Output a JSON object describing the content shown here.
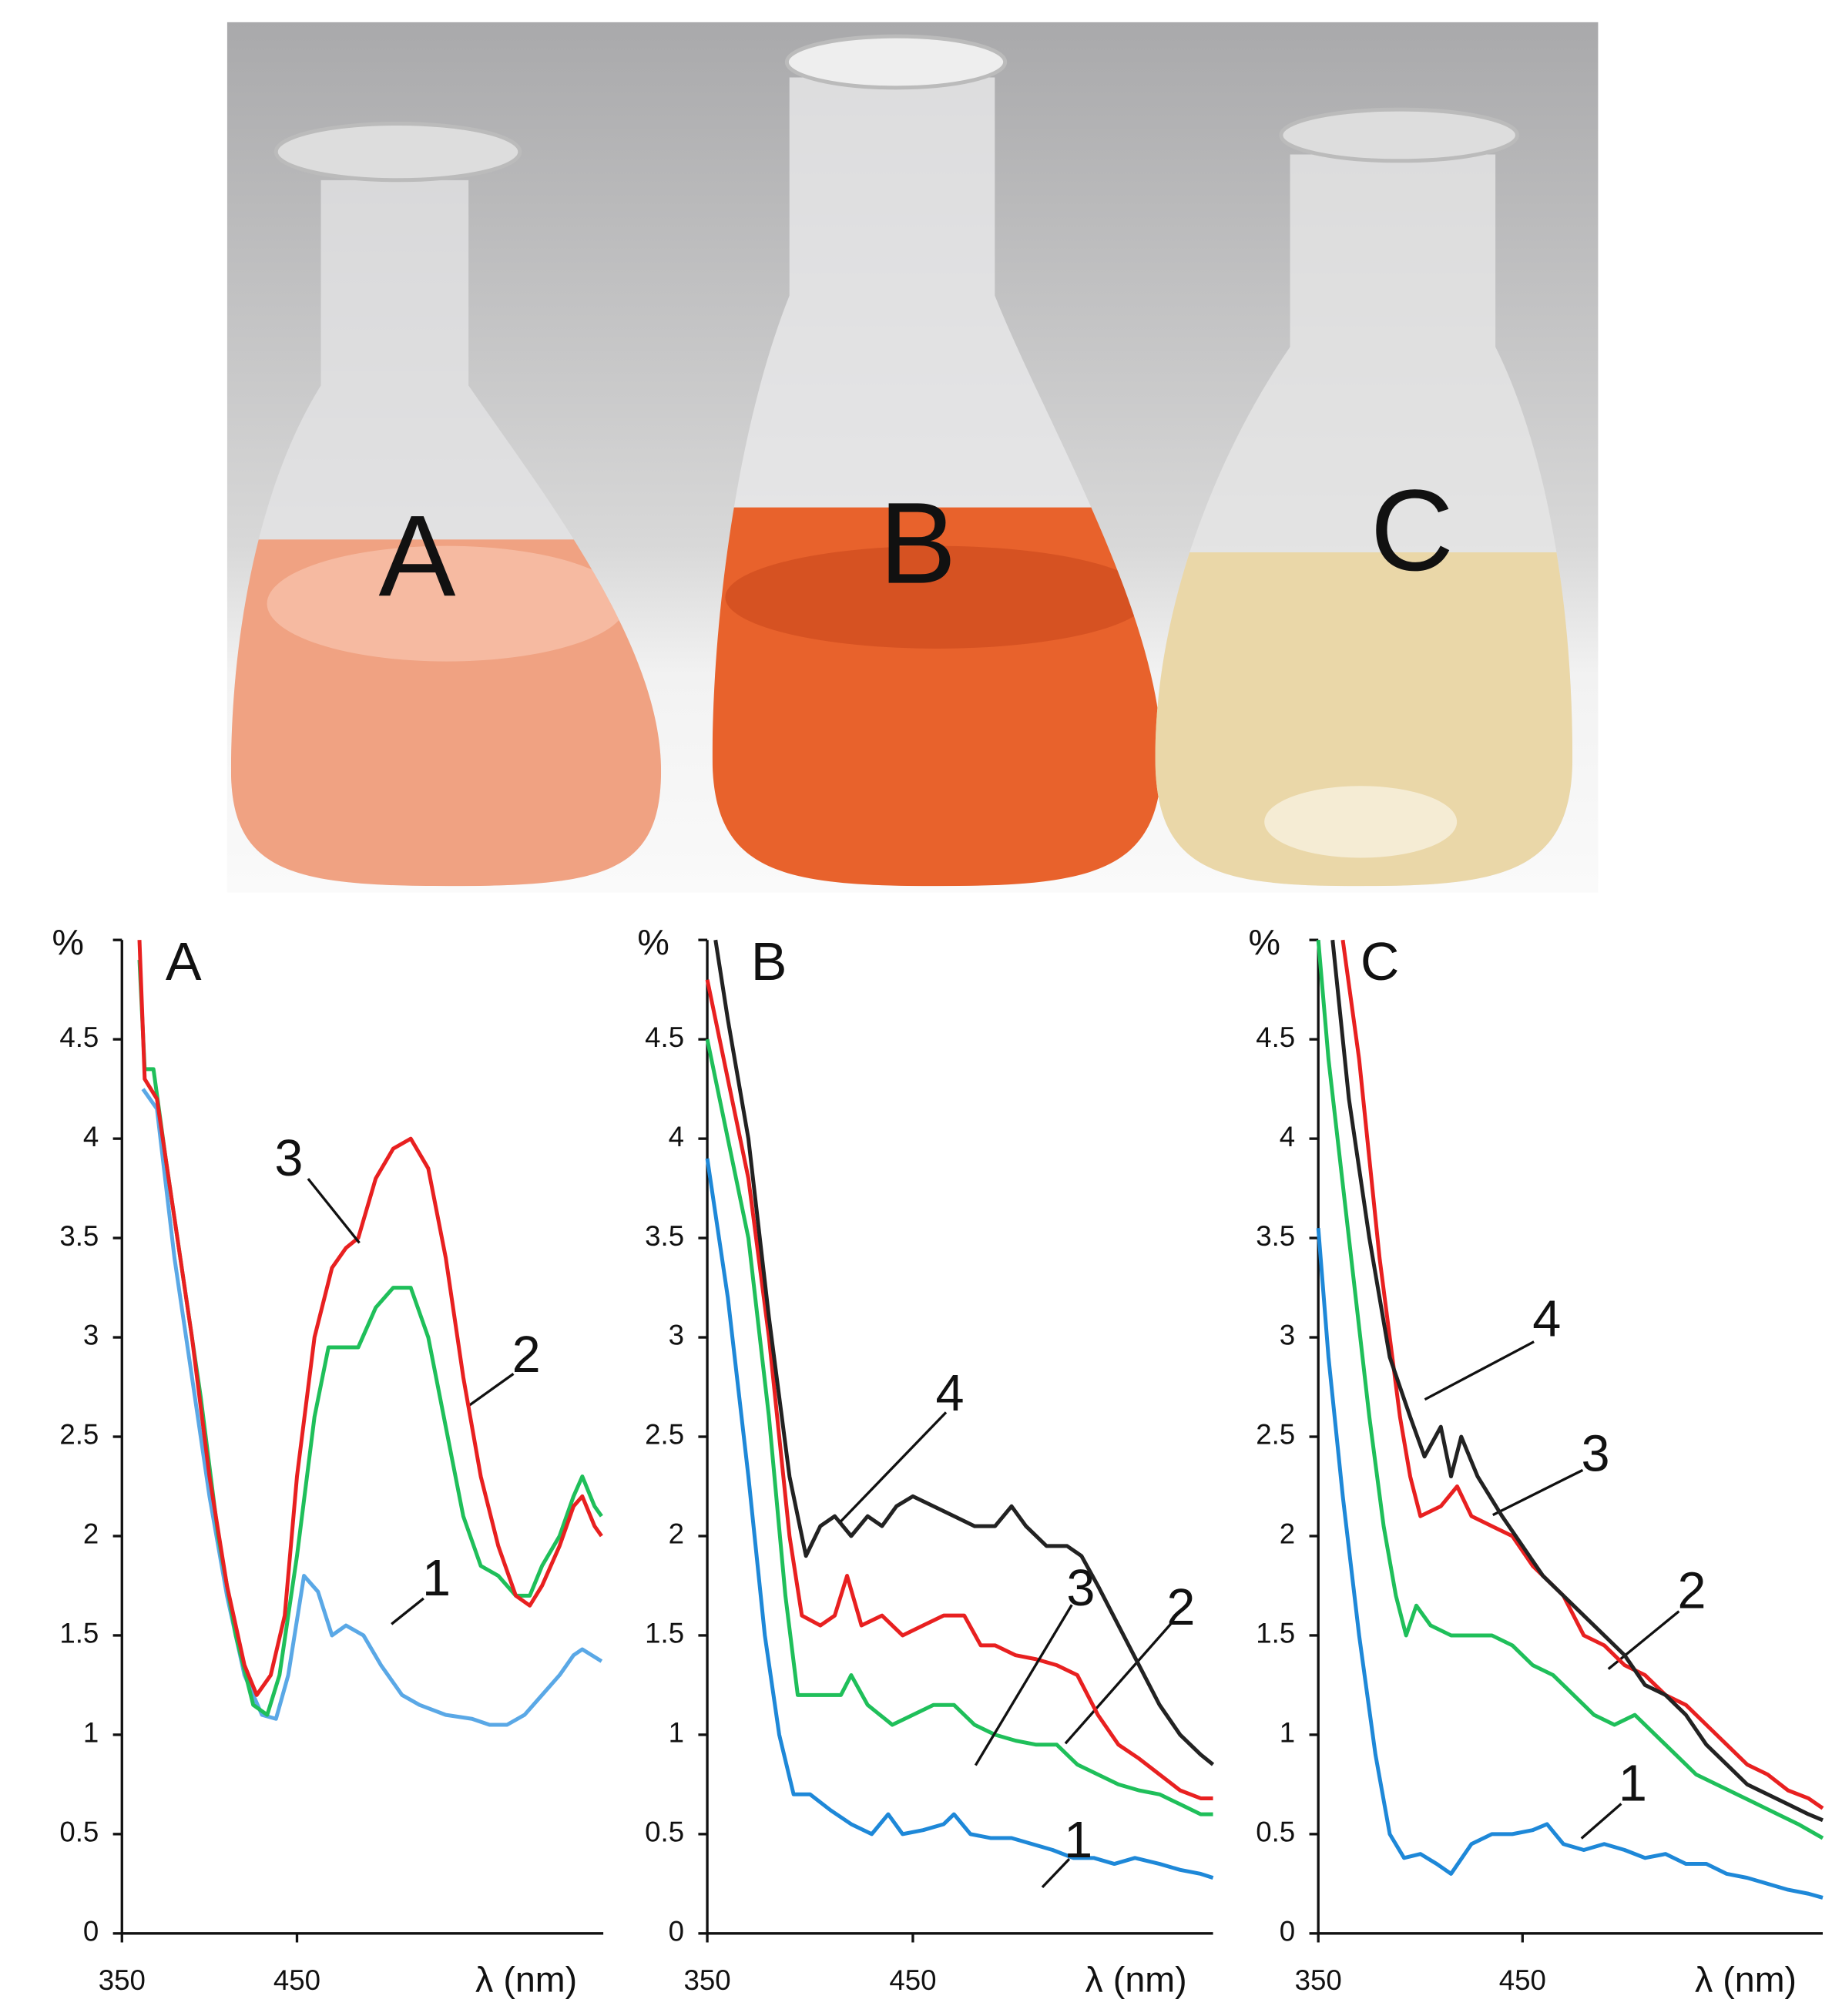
{
  "photo": {
    "labels": [
      "A",
      "B",
      "C"
    ]
  },
  "chart_data": [
    {
      "type": "line",
      "title": "A",
      "y_label": "%",
      "x_label": "λ (nm)",
      "xlim": [
        350,
        625
      ],
      "ylim": [
        0,
        5
      ],
      "xticks": [
        350,
        450
      ],
      "yticks": [
        0,
        0.5,
        1,
        1.5,
        2,
        2.5,
        3,
        3.5,
        4,
        4.5
      ],
      "series": [
        {
          "name": "1",
          "color": "#5aa8e6",
          "x": [
            362,
            370,
            380,
            390,
            400,
            410,
            420,
            430,
            438,
            445,
            454,
            462,
            470,
            478,
            488,
            498,
            510,
            520,
            535,
            550,
            560,
            570,
            580,
            590,
            600,
            608,
            613,
            624
          ],
          "values": [
            4.25,
            4.15,
            3.4,
            2.8,
            2.2,
            1.7,
            1.3,
            1.1,
            1.08,
            1.3,
            1.8,
            1.72,
            1.5,
            1.55,
            1.5,
            1.35,
            1.2,
            1.15,
            1.1,
            1.08,
            1.05,
            1.05,
            1.1,
            1.2,
            1.3,
            1.4,
            1.43,
            1.37
          ]
        },
        {
          "name": "2",
          "color": "#1fbf5a",
          "x": [
            360,
            363,
            368,
            375,
            385,
            395,
            405,
            415,
            425,
            433,
            440,
            450,
            460,
            468,
            475,
            485,
            495,
            505,
            515,
            525,
            535,
            545,
            555,
            565,
            575,
            583,
            590,
            600,
            608,
            613,
            620,
            624
          ],
          "values": [
            4.9,
            4.35,
            4.35,
            3.9,
            3.3,
            2.7,
            2.0,
            1.5,
            1.15,
            1.1,
            1.3,
            1.9,
            2.6,
            2.95,
            2.95,
            2.95,
            3.15,
            3.25,
            3.25,
            3.0,
            2.55,
            2.1,
            1.85,
            1.8,
            1.7,
            1.7,
            1.85,
            2.0,
            2.2,
            2.3,
            2.15,
            2.1
          ]
        },
        {
          "name": "3",
          "color": "#e82020",
          "x": [
            360,
            363,
            370,
            380,
            390,
            400,
            410,
            420,
            427,
            435,
            443,
            450,
            460,
            470,
            478,
            485,
            495,
            505,
            515,
            525,
            535,
            545,
            555,
            565,
            575,
            583,
            590,
            600,
            608,
            613,
            620,
            624
          ],
          "values": [
            5.0,
            4.3,
            4.2,
            3.6,
            3.0,
            2.3,
            1.75,
            1.35,
            1.2,
            1.3,
            1.6,
            2.3,
            3.0,
            3.35,
            3.45,
            3.5,
            3.8,
            3.95,
            4.0,
            3.85,
            3.4,
            2.8,
            2.3,
            1.95,
            1.7,
            1.65,
            1.75,
            1.95,
            2.15,
            2.2,
            2.05,
            2.0
          ]
        }
      ]
    },
    {
      "type": "line",
      "title": "B",
      "y_label": "%",
      "x_label": "λ (nm)",
      "xlim": [
        350,
        596
      ],
      "ylim": [
        0,
        5
      ],
      "xticks": [
        350,
        450
      ],
      "yticks": [
        0,
        0.5,
        1,
        1.5,
        2,
        2.5,
        3,
        3.5,
        4,
        4.5
      ],
      "series": [
        {
          "name": "1",
          "color": "#1e88d8",
          "x": [
            350,
            360,
            370,
            378,
            385,
            392,
            400,
            410,
            420,
            430,
            438,
            445,
            455,
            465,
            470,
            478,
            488,
            498,
            508,
            518,
            528,
            538,
            548,
            558,
            570,
            580,
            590,
            596
          ],
          "values": [
            3.9,
            3.2,
            2.3,
            1.5,
            1.0,
            0.7,
            0.7,
            0.62,
            0.55,
            0.5,
            0.6,
            0.5,
            0.52,
            0.55,
            0.6,
            0.5,
            0.48,
            0.48,
            0.45,
            0.42,
            0.38,
            0.38,
            0.35,
            0.38,
            0.35,
            0.32,
            0.3,
            0.28
          ]
        },
        {
          "name": "2",
          "color": "#1fbf5a",
          "x": [
            350,
            360,
            370,
            380,
            388,
            394,
            405,
            415,
            420,
            428,
            440,
            450,
            460,
            470,
            480,
            490,
            500,
            510,
            520,
            530,
            540,
            550,
            560,
            570,
            580,
            590,
            596
          ],
          "values": [
            4.5,
            4.0,
            3.5,
            2.6,
            1.7,
            1.2,
            1.2,
            1.2,
            1.3,
            1.15,
            1.05,
            1.1,
            1.15,
            1.15,
            1.05,
            1.0,
            0.97,
            0.95,
            0.95,
            0.85,
            0.8,
            0.75,
            0.72,
            0.7,
            0.65,
            0.6,
            0.6
          ]
        },
        {
          "name": "3",
          "color": "#e82020",
          "x": [
            350,
            360,
            370,
            380,
            390,
            396,
            405,
            412,
            418,
            425,
            435,
            445,
            455,
            465,
            475,
            483,
            490,
            500,
            510,
            520,
            530,
            540,
            550,
            560,
            570,
            580,
            590,
            596
          ],
          "values": [
            4.8,
            4.3,
            3.8,
            3.0,
            2.0,
            1.6,
            1.55,
            1.6,
            1.8,
            1.55,
            1.6,
            1.5,
            1.55,
            1.6,
            1.6,
            1.45,
            1.45,
            1.4,
            1.38,
            1.35,
            1.3,
            1.1,
            0.95,
            0.88,
            0.8,
            0.72,
            0.68,
            0.68
          ]
        },
        {
          "name": "4",
          "color": "#222222",
          "x": [
            354,
            360,
            370,
            380,
            390,
            398,
            405,
            412,
            420,
            428,
            435,
            442,
            450,
            460,
            470,
            480,
            490,
            498,
            505,
            515,
            525,
            532,
            540,
            550,
            560,
            570,
            580,
            590,
            596
          ],
          "values": [
            5.0,
            4.6,
            4.0,
            3.1,
            2.3,
            1.9,
            2.05,
            2.1,
            2.0,
            2.1,
            2.05,
            2.15,
            2.2,
            2.15,
            2.1,
            2.05,
            2.05,
            2.15,
            2.05,
            1.95,
            1.95,
            1.9,
            1.75,
            1.55,
            1.35,
            1.15,
            1.0,
            0.9,
            0.85
          ]
        }
      ]
    },
    {
      "type": "line",
      "title": "C",
      "y_label": "%",
      "x_label": "λ (nm)",
      "xlim": [
        350,
        597
      ],
      "ylim": [
        0,
        5
      ],
      "xticks": [
        350,
        450
      ],
      "yticks": [
        0,
        0.5,
        1,
        1.5,
        2,
        2.5,
        3,
        3.5,
        4,
        4.5
      ],
      "series": [
        {
          "name": "1",
          "color": "#1e88d8",
          "x": [
            350,
            355,
            362,
            370,
            378,
            385,
            392,
            400,
            408,
            415,
            425,
            435,
            445,
            455,
            462,
            470,
            480,
            490,
            500,
            510,
            520,
            530,
            540,
            550,
            560,
            570,
            580,
            590,
            597
          ],
          "values": [
            3.55,
            2.9,
            2.2,
            1.5,
            0.9,
            0.5,
            0.38,
            0.4,
            0.35,
            0.3,
            0.45,
            0.5,
            0.5,
            0.52,
            0.55,
            0.45,
            0.42,
            0.45,
            0.42,
            0.38,
            0.4,
            0.35,
            0.35,
            0.3,
            0.28,
            0.25,
            0.22,
            0.2,
            0.18
          ]
        },
        {
          "name": "2",
          "color": "#1fbf5a",
          "x": [
            350,
            355,
            365,
            375,
            382,
            388,
            393,
            398,
            405,
            415,
            425,
            435,
            445,
            455,
            465,
            475,
            485,
            495,
            505,
            515,
            525,
            535,
            545,
            555,
            565,
            575,
            585,
            597
          ],
          "values": [
            5.0,
            4.4,
            3.5,
            2.6,
            2.05,
            1.7,
            1.5,
            1.65,
            1.55,
            1.5,
            1.5,
            1.5,
            1.45,
            1.35,
            1.3,
            1.2,
            1.1,
            1.05,
            1.1,
            1.0,
            0.9,
            0.8,
            0.75,
            0.7,
            0.65,
            0.6,
            0.55,
            0.48
          ]
        },
        {
          "name": "3",
          "color": "#e82020",
          "x": [
            362,
            370,
            380,
            390,
            395,
            400,
            410,
            418,
            425,
            435,
            445,
            455,
            465,
            470,
            480,
            490,
            500,
            510,
            520,
            530,
            540,
            550,
            560,
            570,
            580,
            590,
            597
          ],
          "values": [
            5.0,
            4.4,
            3.4,
            2.6,
            2.3,
            2.1,
            2.15,
            2.25,
            2.1,
            2.05,
            2.0,
            1.85,
            1.75,
            1.7,
            1.5,
            1.45,
            1.35,
            1.3,
            1.2,
            1.15,
            1.05,
            0.95,
            0.85,
            0.8,
            0.72,
            0.68,
            0.63
          ]
        },
        {
          "name": "4",
          "color": "#222222",
          "x": [
            357,
            365,
            375,
            385,
            395,
            402,
            410,
            415,
            420,
            428,
            440,
            450,
            460,
            470,
            480,
            490,
            500,
            510,
            520,
            530,
            540,
            550,
            560,
            570,
            580,
            590,
            597
          ],
          "values": [
            5.0,
            4.2,
            3.5,
            2.9,
            2.6,
            2.4,
            2.55,
            2.3,
            2.5,
            2.3,
            2.1,
            1.95,
            1.8,
            1.7,
            1.6,
            1.5,
            1.4,
            1.25,
            1.2,
            1.1,
            0.95,
            0.85,
            0.75,
            0.7,
            0.65,
            0.6,
            0.57
          ]
        }
      ]
    }
  ]
}
